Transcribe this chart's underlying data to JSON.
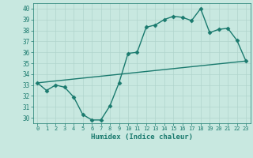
{
  "xlabel": "Humidex (Indice chaleur)",
  "ylabel": "",
  "background_color": "#c8e8e0",
  "line_color": "#1a7a6e",
  "xlim": [
    -0.5,
    23.5
  ],
  "ylim": [
    29.5,
    40.5
  ],
  "yticks": [
    30,
    31,
    32,
    33,
    34,
    35,
    36,
    37,
    38,
    39,
    40
  ],
  "xticks": [
    0,
    1,
    2,
    3,
    4,
    5,
    6,
    7,
    8,
    9,
    10,
    11,
    12,
    13,
    14,
    15,
    16,
    17,
    18,
    19,
    20,
    21,
    22,
    23
  ],
  "series1_x": [
    0,
    1,
    2,
    3,
    4,
    5,
    6,
    7,
    8,
    9,
    10,
    11,
    12,
    13,
    14,
    15,
    16,
    17,
    18,
    19,
    20,
    21,
    22,
    23
  ],
  "series1_y": [
    33.2,
    32.5,
    33.0,
    32.8,
    31.9,
    30.3,
    29.8,
    29.8,
    31.1,
    33.2,
    35.9,
    36.0,
    38.3,
    38.5,
    39.0,
    39.3,
    39.2,
    38.9,
    40.0,
    37.8,
    38.1,
    38.2,
    37.1,
    35.2
  ],
  "series2_x": [
    0,
    23
  ],
  "series2_y": [
    33.2,
    35.2
  ],
  "grid_color": "#b0d4cc",
  "marker": "D",
  "marker_size": 2.5,
  "linewidth": 1.0
}
